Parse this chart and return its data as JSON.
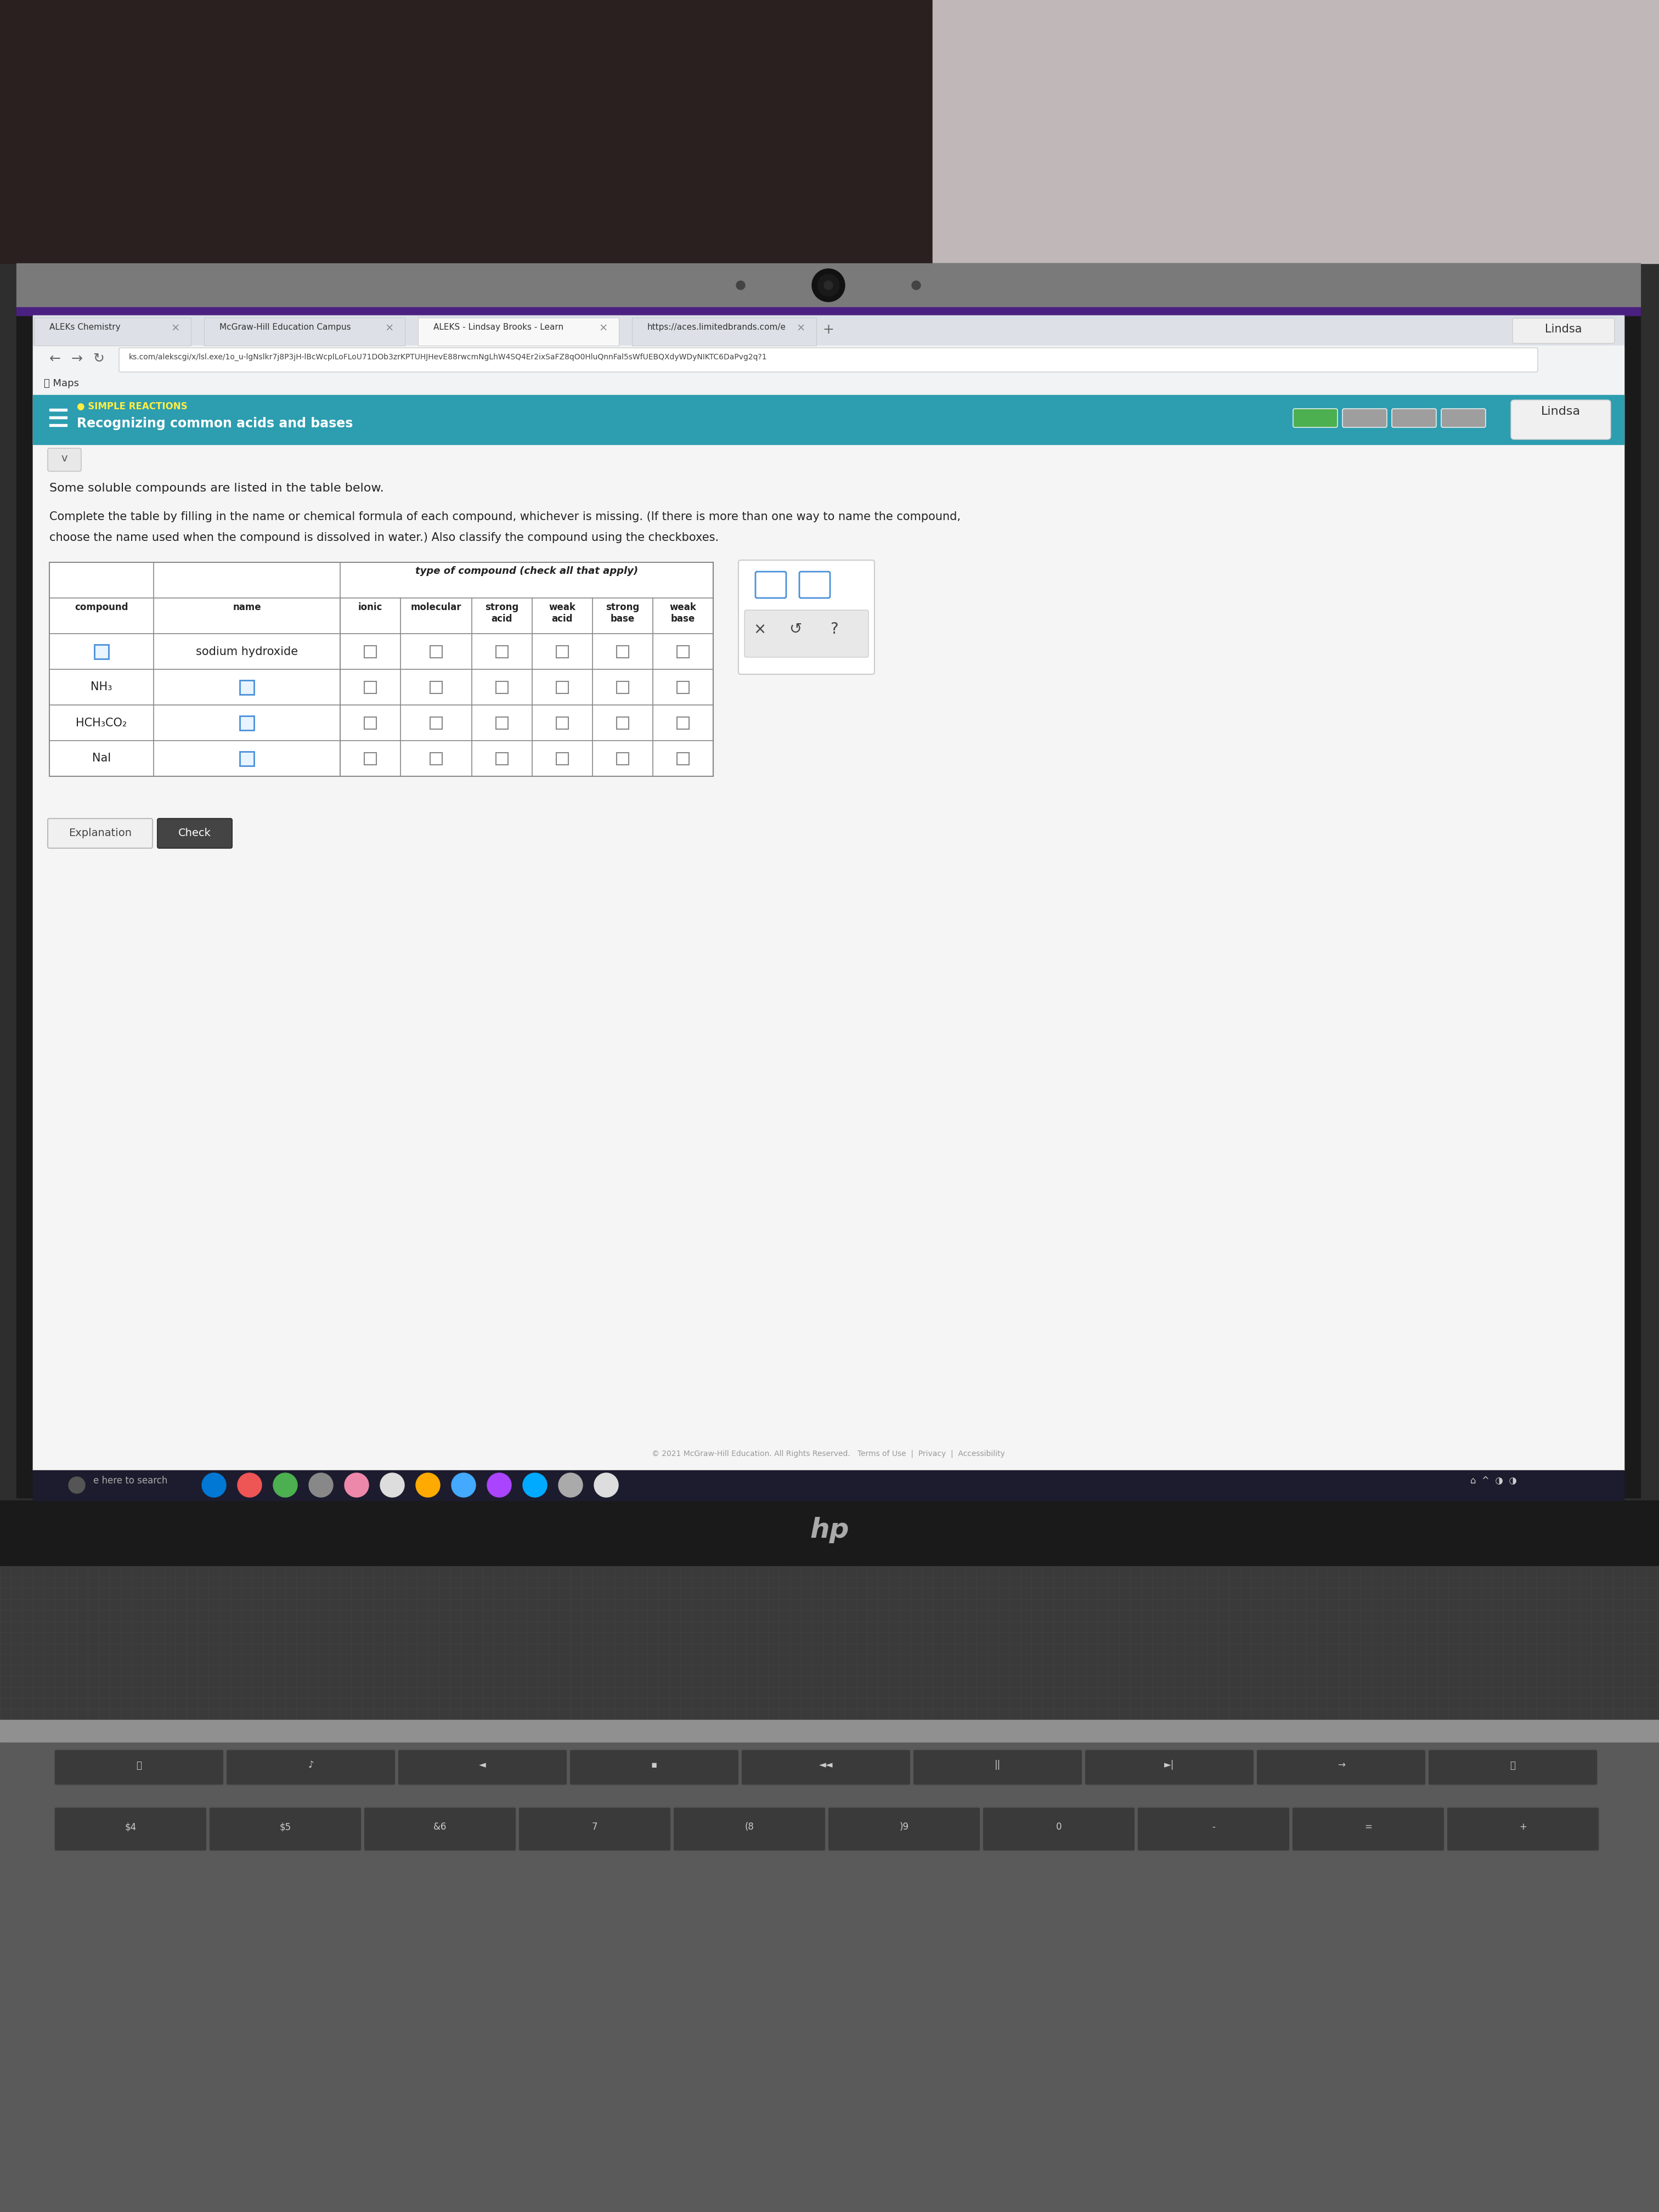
{
  "title": "SIMPLE REACTIONS",
  "subtitle": "Recognizing common acids and bases",
  "student_name": "Lindsa",
  "url": "ks.com/alekscgi/x/lsl.exe/1o_u-lgNslkr7j8P3jH-lBcWcplLoFLoU71DOb3zrKPTUHJHevE88rwcmNgLhW4SQ4Er2ixSaFZ8qO0HluQnnFal5sWfUEBQXdyWDyNIKTC6DaPvg2q?1",
  "instructions1": "Some soluble compounds are listed in the table below.",
  "instructions2": "Complete the table by filling in the name or chemical formula of each compound, whichever is missing. (If there is more than one way to name the compound,",
  "instructions3": "choose the name used when the compound is dissolved in water.) Also classify the compound using the checkboxes.",
  "table_header_col1": "compound",
  "table_header_col2": "name",
  "table_header_group": "type of compound (check all that apply)",
  "row_compounds": [
    "",
    "NH₃",
    "HCH₃CO₂",
    "NaI"
  ],
  "row_names": [
    "sodium hydroxide",
    "",
    "",
    ""
  ],
  "progress_colors": [
    "#4caf50",
    "#9e9e9e",
    "#9e9e9e",
    "#9e9e9e"
  ],
  "header_bg": "#2d9db0",
  "laptop_top_bg": "#2a2a2a",
  "laptop_bottom_bg": "#5a5a5a",
  "screen_bezel_bg": "#1a1a1a",
  "browser_tab_bg": "#dde1e7",
  "active_tab_bg": "#ffffff",
  "addr_bar_bg": "#f1f3f4",
  "content_bg": "#f0f0f0",
  "table_bg": "#ffffff",
  "taskbar_bg": "#1c1c2e",
  "keyboard_bg": "#4a4a4a"
}
